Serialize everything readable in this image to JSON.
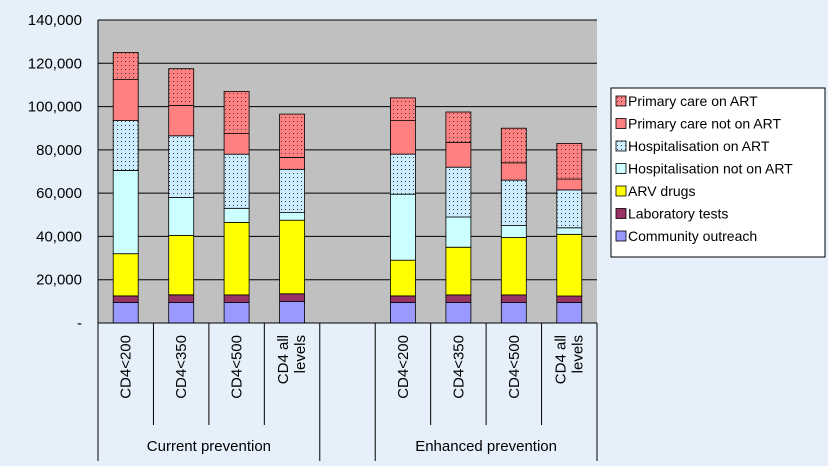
{
  "chart_data": {
    "type": "bar",
    "stacked": true,
    "categories": [
      "CD4<200",
      "CD4<350",
      "CD4<500",
      "CD4 all levels",
      "CD4<200",
      "CD4<350",
      "CD4<500",
      "CD4 all levels"
    ],
    "groups": [
      {
        "label": "Current prevention",
        "categories": [
          "CD4<200",
          "CD4<350",
          "CD4<500",
          "CD4 all levels"
        ]
      },
      {
        "label": "Enhanced prevention",
        "categories": [
          "CD4<200",
          "CD4<350",
          "CD4<500",
          "CD4 all levels"
        ]
      }
    ],
    "series": [
      {
        "name": "Community outreach",
        "color": "#9999ff",
        "pattern": "solid",
        "values": [
          9500,
          9500,
          9500,
          10000,
          9500,
          9500,
          9500,
          9500
        ]
      },
      {
        "name": "Laboratory tests",
        "color": "#993366",
        "pattern": "solid",
        "values": [
          3000,
          3500,
          3500,
          3500,
          3000,
          3500,
          3500,
          3000
        ]
      },
      {
        "name": "ARV drugs",
        "color": "#ffff00",
        "pattern": "solid",
        "values": [
          19500,
          27500,
          33500,
          34000,
          16500,
          22000,
          26500,
          28500
        ]
      },
      {
        "name": "Hospitalisation not on ART",
        "color": "#ccffff",
        "pattern": "solid",
        "values": [
          38500,
          17500,
          6500,
          3500,
          30500,
          14000,
          5500,
          3000
        ]
      },
      {
        "name": "Hospitalisation on ART",
        "color": "#ccecff",
        "pattern": "dots",
        "values": [
          23000,
          28500,
          25000,
          20000,
          18500,
          23000,
          21000,
          17500
        ]
      },
      {
        "name": "Primary care not on ART",
        "color": "#ff8080",
        "pattern": "solid",
        "values": [
          19000,
          14000,
          9500,
          5500,
          15500,
          11500,
          8000,
          5000
        ]
      },
      {
        "name": "Primary care on ART",
        "color": "#ff8080",
        "pattern": "dots",
        "values": [
          12500,
          17000,
          19500,
          20000,
          10500,
          14000,
          16000,
          16500
        ]
      }
    ],
    "legend_order": [
      "Primary care on ART",
      "Primary care not on ART",
      "Hospitalisation on ART",
      "Hospitalisation not on ART",
      "ARV drugs",
      "Laboratory tests",
      "Community outreach"
    ],
    "legend_position": "right",
    "ylim": [
      0,
      140000
    ],
    "yticks": [
      0,
      20000,
      40000,
      60000,
      80000,
      100000,
      120000,
      140000
    ],
    "ytick_labels": [
      "-",
      "20,000",
      "40,000",
      "60,000",
      "80,000",
      "100,000",
      "120,000",
      "140,000"
    ],
    "grid": true,
    "title": "",
    "xlabel": "",
    "ylabel": "",
    "colors": {
      "plot_background": "#c0c0c0",
      "page_background": "#e6f0fa",
      "gridline": "#000000"
    }
  }
}
